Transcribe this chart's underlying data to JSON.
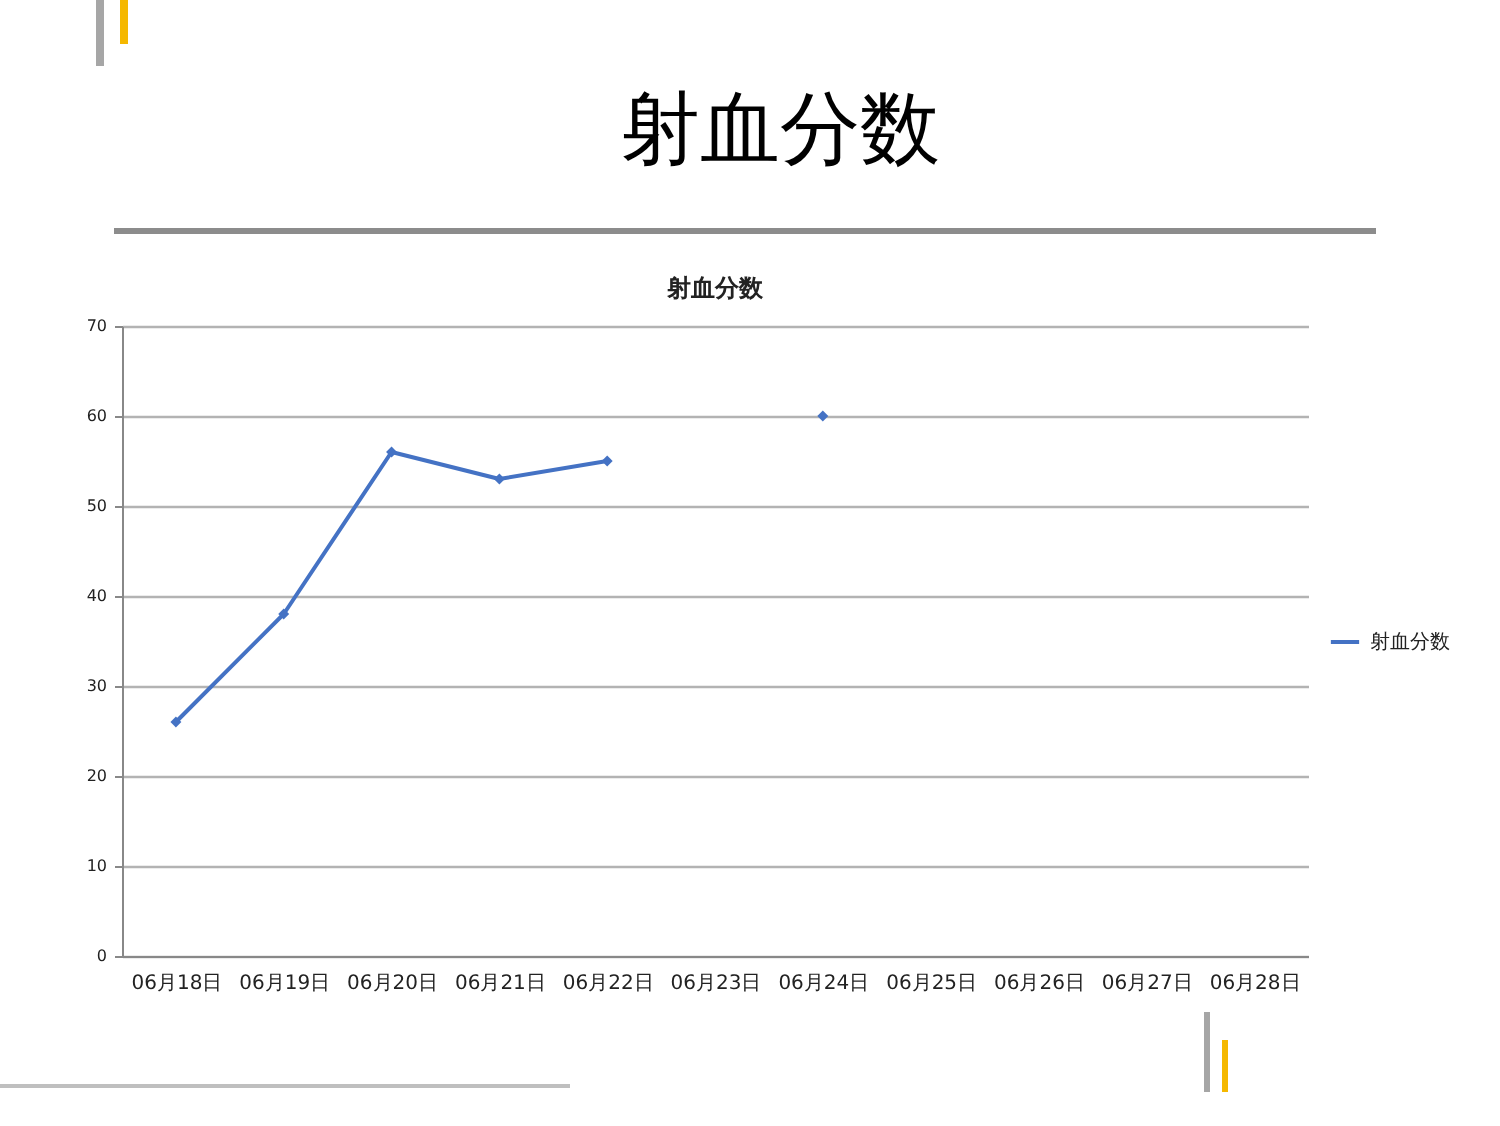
{
  "chart_data": {
    "type": "line",
    "title": "射血分数",
    "subtitle": "射血分数",
    "categories": [
      "06月18日",
      "06月19日",
      "06月20日",
      "06月21日",
      "06月22日",
      "06月23日",
      "06月24日",
      "06月25日",
      "06月26日",
      "06月27日",
      "06月28日"
    ],
    "series": [
      {
        "name": "射血分数",
        "color": "#4472c4",
        "values": [
          26,
          38,
          56,
          53,
          55,
          null,
          60,
          null,
          null,
          null,
          null
        ]
      }
    ],
    "ylim": [
      0,
      70
    ],
    "yticks": [
      0,
      10,
      20,
      30,
      40,
      50,
      60,
      70
    ],
    "grid": "y",
    "legend": "right",
    "marker": "diamond",
    "line_style": "solid"
  }
}
